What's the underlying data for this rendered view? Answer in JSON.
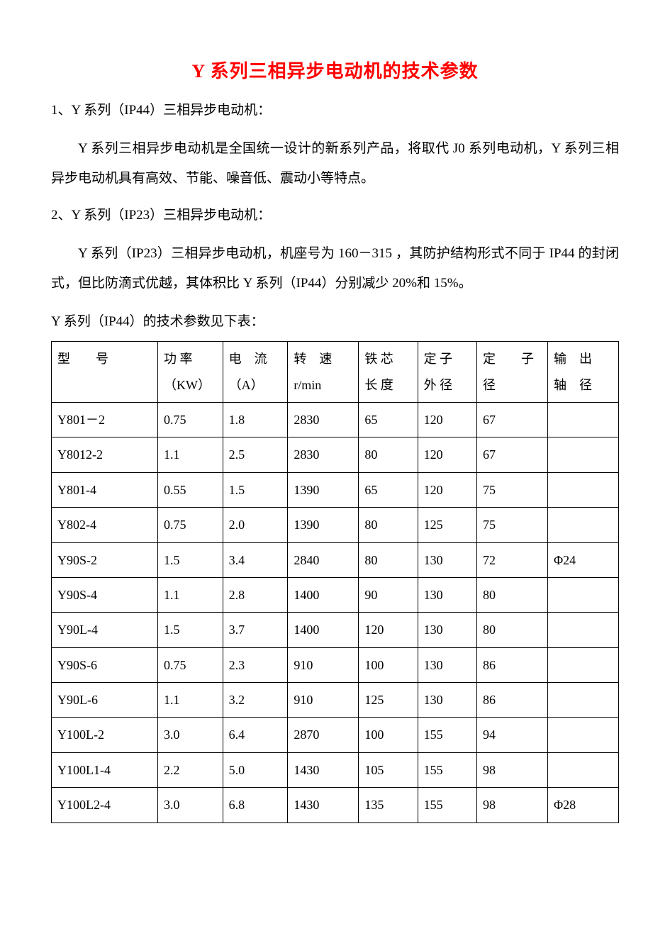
{
  "title": "Y 系列三相异步电动机的技术参数",
  "title_color": "#ff0000",
  "text_color": "#000000",
  "background_color": "#ffffff",
  "border_color": "#000000",
  "title_fontsize": 26,
  "body_fontsize": 19,
  "table_fontsize": 18,
  "section1": {
    "heading": "1、Y 系列（IP44）三相异步电动机：",
    "paragraph": "Y 系列三相异步电动机是全国统一设计的新系列产品，将取代 J0 系列电动机，Y 系列三相异步电动机具有高效、节能、噪音低、震动小等特点。"
  },
  "section2": {
    "heading": "2、Y 系列（IP23）三相异步电动机：",
    "paragraph": "Y 系列（IP23）三相异步电动机，机座号为 160－315 ，其防护结构形式不同于 IP44 的封闭式，但比防滴式优越，其体积比 Y 系列（IP44）分别减少 20%和 15%。"
  },
  "table_caption": "Y 系列（IP44）的技术参数见下表：",
  "table": {
    "columns": [
      {
        "label": "型　　号",
        "unit": ""
      },
      {
        "label": "功 率",
        "unit": "（KW）"
      },
      {
        "label": "电　流",
        "unit": "（A）"
      },
      {
        "label": "转　速",
        "unit": "r/min"
      },
      {
        "label": "铁 芯",
        "unit": "长 度"
      },
      {
        "label": "定 子",
        "unit": "外 径"
      },
      {
        "label": "定　　子",
        "unit": "径"
      },
      {
        "label": "输　出",
        "unit": "轴　径"
      }
    ],
    "column_widths_pct": [
      18,
      11,
      11,
      12,
      10,
      10,
      12,
      12
    ],
    "rows": [
      [
        "Y801－2",
        "0.75",
        "1.8",
        "2830",
        "65",
        "120",
        "67",
        ""
      ],
      [
        "Y8012-2",
        "1.1",
        "2.5",
        "2830",
        "80",
        "120",
        "67",
        ""
      ],
      [
        "Y801-4",
        "0.55",
        "1.5",
        "1390",
        "65",
        "120",
        "75",
        ""
      ],
      [
        "Y802-4",
        "0.75",
        "2.0",
        "1390",
        "80",
        "125",
        "75",
        ""
      ],
      [
        "Y90S-2",
        "1.5",
        "3.4",
        "2840",
        "80",
        "130",
        "72",
        "Φ24"
      ],
      [
        "Y90S-4",
        "1.1",
        "2.8",
        "1400",
        "90",
        "130",
        "80",
        ""
      ],
      [
        "Y90L-4",
        "1.5",
        "3.7",
        "1400",
        "120",
        "130",
        "80",
        ""
      ],
      [
        "Y90S-6",
        "0.75",
        "2.3",
        "910",
        "100",
        "130",
        "86",
        ""
      ],
      [
        "Y90L-6",
        "1.1",
        "3.2",
        "910",
        "125",
        "130",
        "86",
        ""
      ],
      [
        "Y100L-2",
        "3.0",
        "6.4",
        "2870",
        "100",
        "155",
        "94",
        ""
      ],
      [
        "Y100L1-4",
        "2.2",
        "5.0",
        "1430",
        "105",
        "155",
        "98",
        ""
      ],
      [
        "Y100L2-4",
        "3.0",
        "6.8",
        "1430",
        "135",
        "155",
        "98",
        "Φ28"
      ]
    ]
  }
}
